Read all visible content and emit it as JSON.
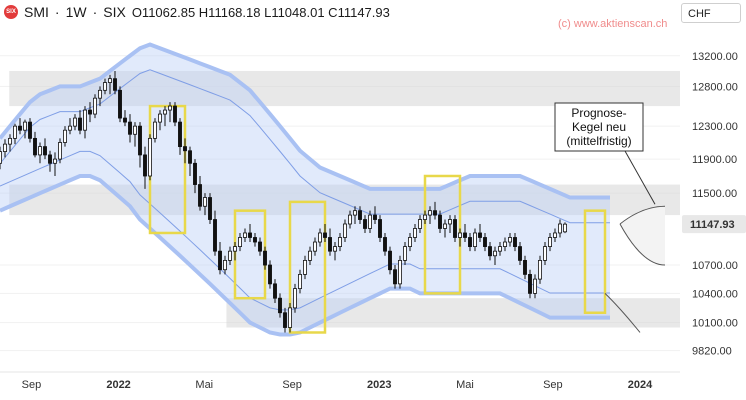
{
  "header": {
    "symbol": "SMI",
    "interval": "1W",
    "exchange": "SIX",
    "ohlc": "O11062.85  H11168.18  L11048.01  C11147.93"
  },
  "watermark": "(c) www.aktienscan.ch",
  "currency": "CHF",
  "annotation": "Prognose-\nKegel neu\n(mittelfristig)",
  "colors": {
    "up": "#ffffff",
    "down": "#111111",
    "highlight": "#e8d84a",
    "band": "#bcd0f7",
    "zone": "#d6d6d6",
    "last_price": "#e8e8e8"
  },
  "chart_data": {
    "type": "candlestick",
    "title": "SMI · 1W · SIX",
    "y_scale": "log",
    "ylim": [
      9650,
      13600
    ],
    "x_range": [
      "2021-07-19",
      "2024-02-26"
    ],
    "y_ticks": [
      13200,
      12800,
      12300,
      11900,
      11500,
      10700,
      10400,
      10100,
      9820
    ],
    "last_price": "11147.93",
    "x_ticks": [
      {
        "date": "2021-09-01",
        "label": "Sep",
        "bold": false
      },
      {
        "date": "2022-01-01",
        "label": "2022",
        "bold": true
      },
      {
        "date": "2022-05-01",
        "label": "Mai",
        "bold": false
      },
      {
        "date": "2022-09-01",
        "label": "Sep",
        "bold": false
      },
      {
        "date": "2023-01-01",
        "label": "2023",
        "bold": true
      },
      {
        "date": "2023-05-01",
        "label": "Mai",
        "bold": false
      },
      {
        "date": "2023-09-01",
        "label": "Sep",
        "bold": false
      },
      {
        "date": "2024-01-01",
        "label": "2024",
        "bold": true
      }
    ],
    "candles_start": "2021-07-19",
    "candles": [
      [
        11850,
        12050,
        11780,
        11990
      ],
      [
        11990,
        12140,
        11920,
        12080
      ],
      [
        12080,
        12200,
        11990,
        12150
      ],
      [
        12150,
        12330,
        12080,
        12300
      ],
      [
        12300,
        12400,
        12200,
        12250
      ],
      [
        12250,
        12380,
        12150,
        12350
      ],
      [
        12350,
        12400,
        12100,
        12150
      ],
      [
        12150,
        12230,
        11920,
        11950
      ],
      [
        11950,
        12100,
        11850,
        12050
      ],
      [
        12050,
        12150,
        11900,
        11950
      ],
      [
        11950,
        12000,
        11750,
        11850
      ],
      [
        11850,
        11980,
        11700,
        11900
      ],
      [
        11900,
        12150,
        11850,
        12100
      ],
      [
        12100,
        12300,
        12050,
        12250
      ],
      [
        12250,
        12400,
        12200,
        12300
      ],
      [
        12300,
        12450,
        12250,
        12400
      ],
      [
        12400,
        12500,
        12200,
        12250
      ],
      [
        12250,
        12550,
        12150,
        12500
      ],
      [
        12500,
        12600,
        12350,
        12450
      ],
      [
        12450,
        12700,
        12400,
        12650
      ],
      [
        12650,
        12800,
        12550,
        12750
      ],
      [
        12750,
        12900,
        12700,
        12850
      ],
      [
        12850,
        12950,
        12700,
        12900
      ],
      [
        12900,
        13000,
        12700,
        12750
      ],
      [
        12750,
        12800,
        12350,
        12400
      ],
      [
        12400,
        12500,
        12300,
        12350
      ],
      [
        12350,
        12450,
        12100,
        12200
      ],
      [
        12200,
        12350,
        12050,
        12300
      ],
      [
        12300,
        12350,
        11800,
        11950
      ],
      [
        11950,
        12050,
        11550,
        11700
      ],
      [
        11700,
        12200,
        11650,
        12150
      ],
      [
        12150,
        12400,
        12100,
        12350
      ],
      [
        12350,
        12500,
        12250,
        12450
      ],
      [
        12450,
        12550,
        12300,
        12500
      ],
      [
        12500,
        12600,
        12350,
        12550
      ],
      [
        12550,
        12600,
        12300,
        12350
      ],
      [
        12350,
        12400,
        11950,
        12050
      ],
      [
        12050,
        12150,
        11850,
        12000
      ],
      [
        12000,
        12050,
        11700,
        11850
      ],
      [
        11850,
        11900,
        11500,
        11600
      ],
      [
        11600,
        11700,
        11300,
        11350
      ],
      [
        11350,
        11500,
        11250,
        11450
      ],
      [
        11450,
        11500,
        11150,
        11200
      ],
      [
        11200,
        11300,
        10800,
        10850
      ],
      [
        10850,
        10950,
        10600,
        10650
      ],
      [
        10650,
        10800,
        10600,
        10750
      ],
      [
        10750,
        10900,
        10700,
        10850
      ],
      [
        10850,
        10950,
        10750,
        10900
      ],
      [
        10900,
        11050,
        10850,
        11000
      ],
      [
        11000,
        11100,
        10950,
        11050
      ],
      [
        11050,
        11150,
        10950,
        11000
      ],
      [
        11000,
        11050,
        10900,
        10950
      ],
      [
        10950,
        11000,
        10800,
        10850
      ],
      [
        10850,
        10900,
        10650,
        10700
      ],
      [
        10700,
        10750,
        10450,
        10500
      ],
      [
        10500,
        10550,
        10300,
        10350
      ],
      [
        10350,
        10400,
        10150,
        10200
      ],
      [
        10200,
        10250,
        10000,
        10050
      ],
      [
        10050,
        10300,
        10000,
        10250
      ],
      [
        10250,
        10500,
        10200,
        10450
      ],
      [
        10450,
        10650,
        10400,
        10600
      ],
      [
        10600,
        10800,
        10550,
        10750
      ],
      [
        10750,
        10900,
        10700,
        10850
      ],
      [
        10850,
        11000,
        10800,
        10950
      ],
      [
        10950,
        11100,
        10900,
        11050
      ],
      [
        11050,
        11150,
        10950,
        11000
      ],
      [
        11000,
        11100,
        10800,
        10850
      ],
      [
        10850,
        10950,
        10750,
        10900
      ],
      [
        10900,
        11050,
        10850,
        11000
      ],
      [
        11000,
        11200,
        10950,
        11150
      ],
      [
        11150,
        11300,
        11100,
        11250
      ],
      [
        11250,
        11350,
        11150,
        11300
      ],
      [
        11300,
        11350,
        11150,
        11200
      ],
      [
        11200,
        11250,
        11050,
        11100
      ],
      [
        11100,
        11300,
        11050,
        11250
      ],
      [
        11250,
        11350,
        11150,
        11200
      ],
      [
        11200,
        11250,
        10950,
        11000
      ],
      [
        11000,
        11050,
        10800,
        10850
      ],
      [
        10850,
        10900,
        10600,
        10650
      ],
      [
        10650,
        10700,
        10450,
        10500
      ],
      [
        10500,
        10800,
        10450,
        10750
      ],
      [
        10750,
        10950,
        10700,
        10900
      ],
      [
        10900,
        11050,
        10850,
        11000
      ],
      [
        11000,
        11150,
        10950,
        11100
      ],
      [
        11100,
        11250,
        11050,
        11200
      ],
      [
        11200,
        11300,
        11150,
        11250
      ],
      [
        11250,
        11350,
        11150,
        11300
      ],
      [
        11300,
        11400,
        11200,
        11250
      ],
      [
        11250,
        11300,
        11050,
        11100
      ],
      [
        11100,
        11200,
        11000,
        11150
      ],
      [
        11150,
        11250,
        11050,
        11200
      ],
      [
        11200,
        11250,
        10950,
        11000
      ],
      [
        11000,
        11100,
        10900,
        11050
      ],
      [
        11050,
        11150,
        10950,
        11000
      ],
      [
        11000,
        11050,
        10850,
        10900
      ],
      [
        10900,
        11100,
        10850,
        11050
      ],
      [
        11050,
        11150,
        10950,
        11000
      ],
      [
        11000,
        11050,
        10850,
        10900
      ],
      [
        10900,
        10950,
        10750,
        10800
      ],
      [
        10800,
        10900,
        10700,
        10850
      ],
      [
        10850,
        10950,
        10800,
        10900
      ],
      [
        10900,
        11000,
        10850,
        10950
      ],
      [
        10950,
        11050,
        10900,
        11000
      ],
      [
        11000,
        11050,
        10850,
        10900
      ],
      [
        10900,
        10950,
        10700,
        10750
      ],
      [
        10750,
        10800,
        10550,
        10600
      ],
      [
        10600,
        10650,
        10350,
        10400
      ],
      [
        10400,
        10600,
        10350,
        10550
      ],
      [
        10550,
        10800,
        10500,
        10750
      ],
      [
        10750,
        10950,
        10700,
        10900
      ],
      [
        10900,
        11050,
        10850,
        11000
      ],
      [
        11000,
        11100,
        10950,
        11050
      ],
      [
        11050,
        11200,
        11000,
        11150
      ],
      [
        11062.85,
        11168.18,
        11048.01,
        11147.93
      ]
    ],
    "band_upper_outer_start": "2021-07-19",
    "band_upper_outer": [
      12150,
      12300,
      12450,
      12600,
      12700,
      12750,
      12800,
      12800,
      12800,
      12850,
      12900,
      13000,
      13100,
      13200,
      13300,
      13350,
      13300,
      13250,
      13200,
      13150,
      13100,
      13050,
      13000,
      12950,
      12850,
      12750,
      12600,
      12450,
      12300,
      12150,
      12000,
      11900,
      11800,
      11750,
      11700,
      11650,
      11600,
      11550,
      11550,
      11550,
      11550,
      11550,
      11550,
      11550,
      11550,
      11600,
      11650,
      11700,
      11700,
      11700,
      11700,
      11700,
      11700,
      11650,
      11600,
      11550,
      11500,
      11450,
      11450,
      11450,
      11450,
      11450
    ],
    "band_lower_outer": [
      11300,
      11350,
      11400,
      11450,
      11500,
      11550,
      11600,
      11650,
      11700,
      11700,
      11650,
      11550,
      11450,
      11350,
      11200,
      11100,
      11000,
      10900,
      10800,
      10700,
      10600,
      10500,
      10400,
      10300,
      10200,
      10100,
      10050,
      10000,
      9980,
      9980,
      10000,
      10050,
      10100,
      10150,
      10200,
      10250,
      10300,
      10350,
      10400,
      10450,
      10450,
      10450,
      10400,
      10400,
      10400,
      10400,
      10400,
      10400,
      10400,
      10400,
      10400,
      10350,
      10300,
      10250,
      10200,
      10150,
      10150,
      10150,
      10150,
      10150,
      10150,
      10150
    ],
    "zones": [
      {
        "from": "2021-08-01",
        "to": "2024-02-26",
        "low": 12550,
        "high": 13000
      },
      {
        "from": "2021-08-01",
        "to": "2024-02-26",
        "low": 11250,
        "high": 11600
      },
      {
        "from": "2022-06-01",
        "to": "2024-02-26",
        "low": 10050,
        "high": 10350
      }
    ],
    "highlight_boxes": [
      {
        "from": "2022-02-14",
        "to": "2022-04-04",
        "low": 11050,
        "high": 12550
      },
      {
        "from": "2022-06-13",
        "to": "2022-07-25",
        "low": 10350,
        "high": 11300
      },
      {
        "from": "2022-08-29",
        "to": "2022-10-17",
        "low": 10000,
        "high": 11400
      },
      {
        "from": "2023-03-06",
        "to": "2023-04-24",
        "low": 10400,
        "high": 11700
      },
      {
        "from": "2023-10-16",
        "to": "2023-11-13",
        "low": 10200,
        "high": 11300
      }
    ],
    "forecast_cone": {
      "start": "2023-12-04",
      "start_price": 11150,
      "end": "2024-02-05",
      "upper": 11350,
      "middle": 11150,
      "lower": 10700,
      "outer_lower": 10000
    }
  }
}
